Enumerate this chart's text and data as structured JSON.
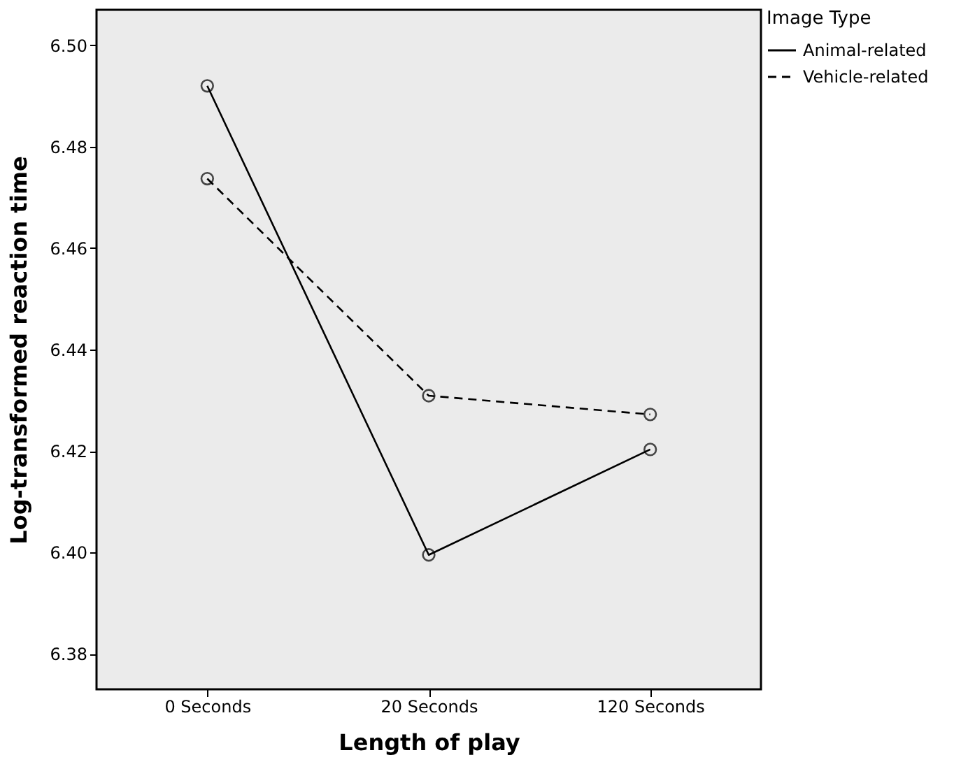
{
  "chart_data": {
    "type": "line",
    "xlabel": "Length of play",
    "ylabel": "Log-transformed reaction time",
    "legend_title": "Image Type",
    "categories": [
      "0 Seconds",
      "20 Seconds",
      "120 Seconds"
    ],
    "series": [
      {
        "name": "Animal-related",
        "color": "#000000",
        "line_style": "solid",
        "values": [
          6.492,
          6.3995,
          6.4203
        ]
      },
      {
        "name": "Vehicle-related",
        "color": "#000000",
        "line_style": "dashed",
        "values": [
          6.4737,
          6.4309,
          6.4272
        ]
      }
    ],
    "ylim": [
      6.373,
      6.507
    ],
    "yticks": [
      6.38,
      {
        "value": 6.4,
        "label": "6.40"
      },
      6.42,
      6.44,
      6.46,
      6.48,
      {
        "value": 6.5,
        "label": "6.50"
      }
    ],
    "marker": "circle",
    "legend": "top right",
    "grid": false
  }
}
